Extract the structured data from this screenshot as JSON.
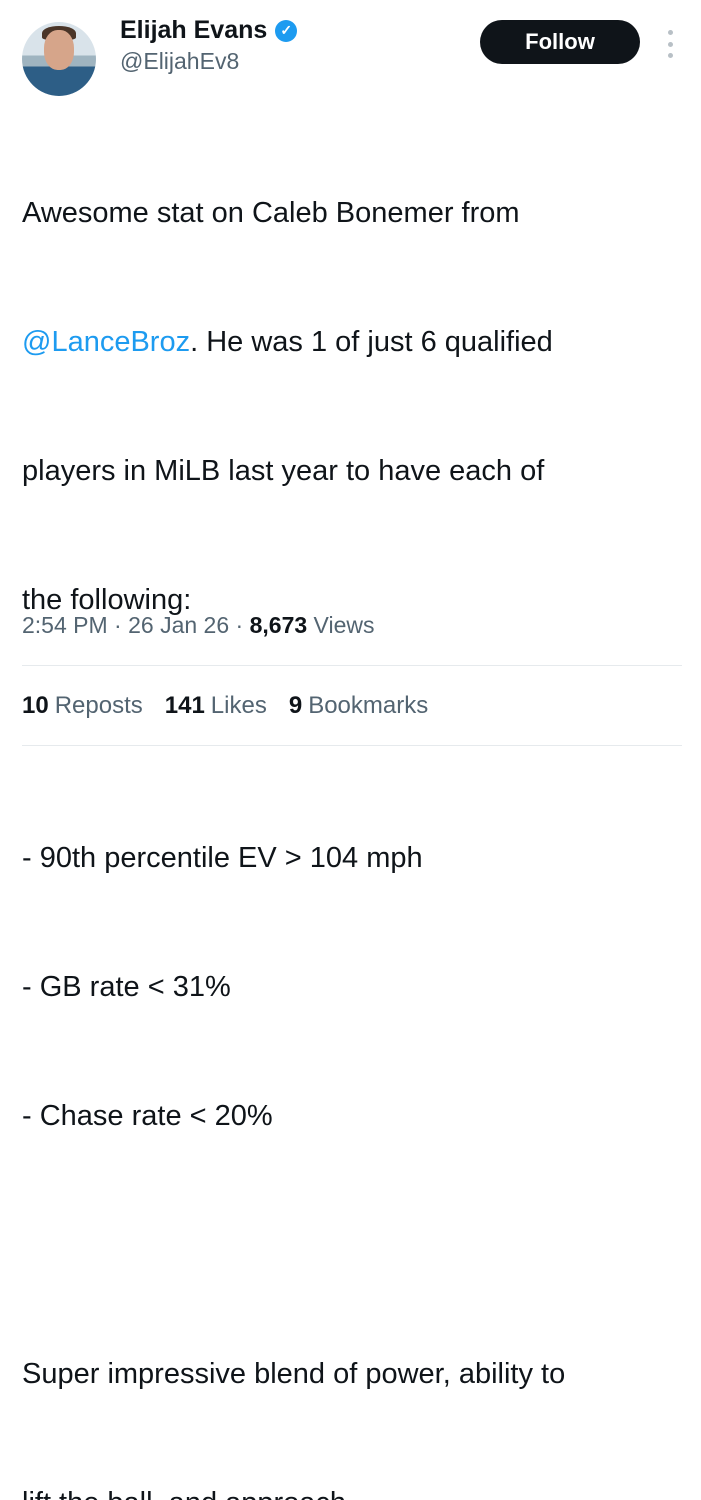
{
  "author": {
    "name": "Elijah Evans",
    "handle": "@ElijahEv8",
    "verified": true
  },
  "follow_label": "Follow",
  "tweet": {
    "line1": "Awesome stat on Caleb Bonemer from",
    "mention": "@LanceBroz",
    "line2_rest": ". He was 1 of just 6 qualified",
    "line3": "players in MiLB last year to have each of",
    "line4": "the following:",
    "bullets": [
      "- 90th percentile EV > 104 mph",
      "- GB rate < 31%",
      "- Chase rate < 20%"
    ],
    "line_end1": "Super impressive blend of power, ability to",
    "line_end2": "lift the ball, and approach."
  },
  "meta": {
    "time": "2:54 PM",
    "date": "26 Jan 26",
    "views_count": "8,673",
    "views_label": "Views"
  },
  "stats": [
    {
      "count": "10",
      "label": "Reposts"
    },
    {
      "count": "141",
      "label": "Likes"
    },
    {
      "count": "9",
      "label": "Bookmarks"
    }
  ],
  "colors": {
    "accent": "#1d9bf0",
    "text": "#0f1419",
    "muted": "#536471"
  }
}
